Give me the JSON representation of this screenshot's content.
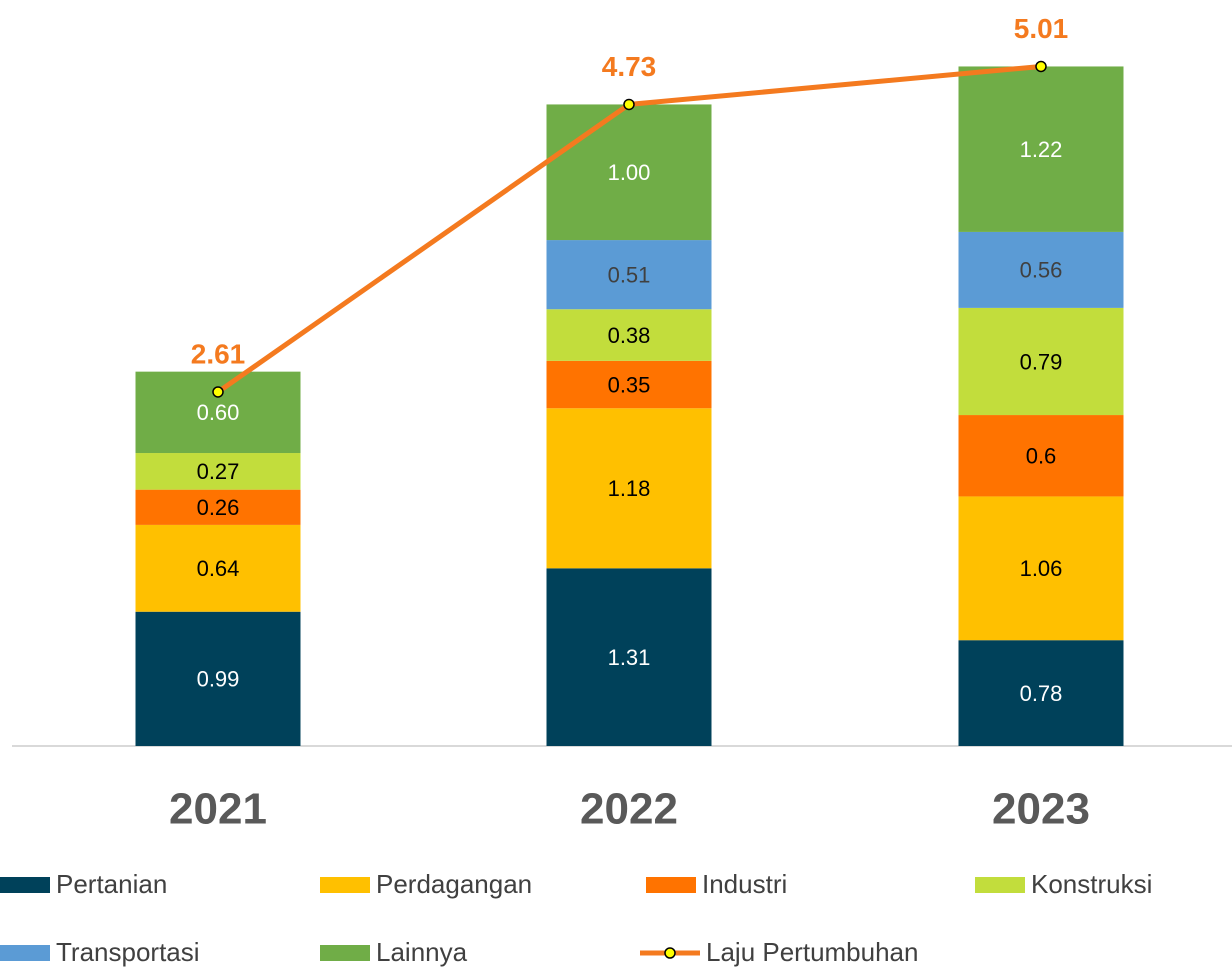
{
  "chart_data": {
    "type": "stacked-bar-line",
    "categories": [
      "2021",
      "2022",
      "2023"
    ],
    "ylim": [
      0,
      5.5
    ],
    "series": [
      {
        "name": "Pertanian",
        "color": "#00415a",
        "label_color": "#ffffff",
        "values": [
          0.99,
          1.31,
          0.78
        ],
        "value_labels": [
          "0.99",
          "1.31",
          "0.78"
        ]
      },
      {
        "name": "Perdagangan",
        "color": "#ffc000",
        "label_color": "#000000",
        "values": [
          0.64,
          1.18,
          1.06
        ],
        "value_labels": [
          "0.64",
          "1.18",
          "1.06"
        ]
      },
      {
        "name": "Industri",
        "color": "#ff7300",
        "label_color": "#000000",
        "values": [
          0.26,
          0.35,
          0.6
        ],
        "value_labels": [
          "0.26",
          "0.35",
          "0.6"
        ]
      },
      {
        "name": "Konstruksi",
        "color": "#c2dd3c",
        "label_color": "#000000",
        "values": [
          0.27,
          0.38,
          0.79
        ],
        "value_labels": [
          "0.27",
          "0.38",
          "0.79"
        ]
      },
      {
        "name": "Transportasi",
        "color": "#5b9bd5",
        "label_color": "#404040",
        "values": [
          null,
          0.51,
          0.56
        ],
        "value_labels": [
          null,
          "0.51",
          "0.56"
        ]
      },
      {
        "name": "Lainnya",
        "color": "#70ad47",
        "label_color": "#ffffff",
        "values": [
          0.6,
          1.0,
          1.22
        ],
        "value_labels": [
          "0.60",
          "1.00",
          "1.22"
        ]
      },
      {
        "name": "Laju Pertumbuhan",
        "type": "line",
        "color": "#f47a1f",
        "marker_color": "#ffff00",
        "values": [
          2.61,
          4.73,
          5.01
        ]
      }
    ]
  }
}
